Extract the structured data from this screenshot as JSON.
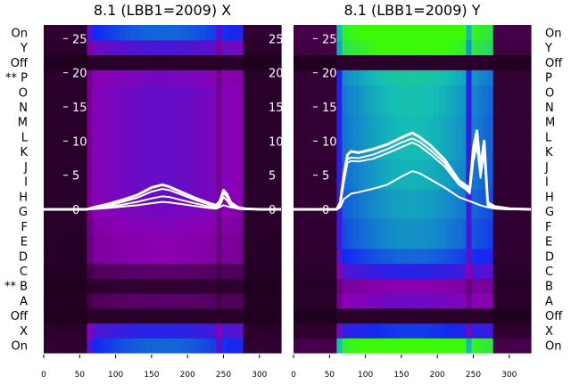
{
  "figure": {
    "background": "#ffffff",
    "panel_background": "#1e001e",
    "trace_color": "#ffffff"
  },
  "row_labels": [
    "On",
    "X",
    "Off",
    "A",
    "B",
    "C",
    "D",
    "E",
    "F",
    "G",
    "H",
    "I",
    "J",
    "K",
    "L",
    "M",
    "N",
    "O",
    "P",
    "Off",
    "Y",
    "On"
  ],
  "row_marks": [
    "",
    "",
    "",
    "",
    "**",
    "",
    "",
    "",
    "",
    "",
    "",
    "",
    "",
    "",
    "",
    "",
    "",
    "",
    "**",
    "",
    "",
    ""
  ],
  "chart_data": [
    {
      "type": "heatmap",
      "title": "8.1 (LBB1=2009) X",
      "xlabel": "",
      "ylabel": "",
      "xlim": [
        0,
        330
      ],
      "x_ticks": [
        0,
        50,
        100,
        150,
        200,
        250,
        300
      ],
      "y_ticks": [
        0,
        5,
        10,
        15,
        20,
        25
      ],
      "ylim": [
        -21,
        27
      ],
      "band_intensity": {
        "On": 0.55,
        "X": 0.45,
        "Off": 0.05,
        "A": 0.18,
        "B": 0.08,
        "C": 0.18,
        "D": 0.3,
        "E": 0.3,
        "F": 0.32,
        "G": 0.34,
        "H": 0.36,
        "I": 0.36,
        "J": 0.36,
        "K": 0.36,
        "L": 0.36,
        "M": 0.36,
        "N": 0.36,
        "O": 0.36,
        "P": 0.34,
        "Y": 0.4
      },
      "series": [
        {
          "values_x": [
            0,
            60,
            70,
            90,
            110,
            130,
            150,
            165,
            175,
            190,
            210,
            230,
            240,
            245,
            250,
            255,
            260,
            270,
            280,
            300,
            330
          ],
          "values": [
            0,
            0,
            0.3,
            0.8,
            1.4,
            2.1,
            3.2,
            3.6,
            3.3,
            2.6,
            1.7,
            0.9,
            0.6,
            1.2,
            2.8,
            2.2,
            1.0,
            0.3,
            0.1,
            0,
            0
          ]
        },
        {
          "values_x": [
            0,
            60,
            70,
            90,
            110,
            130,
            150,
            165,
            175,
            190,
            210,
            230,
            240,
            245,
            250,
            255,
            260,
            270,
            280,
            300,
            330
          ],
          "values": [
            0,
            0,
            0.2,
            0.6,
            1.1,
            1.7,
            2.6,
            3.0,
            2.8,
            2.2,
            1.4,
            0.7,
            0.4,
            0.9,
            2.4,
            1.8,
            0.8,
            0.2,
            0.1,
            0,
            0
          ]
        },
        {
          "values_x": [
            0,
            60,
            70,
            90,
            110,
            130,
            150,
            165,
            175,
            190,
            210,
            230,
            240,
            245,
            250,
            255,
            260,
            270,
            280,
            300,
            330
          ],
          "values": [
            0,
            0,
            0.1,
            0.4,
            0.7,
            1.1,
            1.6,
            1.9,
            1.8,
            1.4,
            0.9,
            0.4,
            0.2,
            0.6,
            1.8,
            1.3,
            0.5,
            0.1,
            0,
            0,
            0
          ]
        },
        {
          "values_x": [
            0,
            60,
            70,
            90,
            110,
            130,
            150,
            165,
            175,
            190,
            210,
            230,
            240,
            250,
            260,
            270,
            280,
            300,
            330
          ],
          "values": [
            0,
            0,
            0.05,
            0.2,
            0.4,
            0.6,
            0.9,
            1.1,
            1.0,
            0.8,
            0.5,
            0.2,
            0.1,
            0.6,
            0.3,
            0.1,
            0,
            0,
            0
          ]
        }
      ]
    },
    {
      "type": "heatmap",
      "title": "8.1 (LBB1=2009) Y",
      "xlabel": "",
      "ylabel": "",
      "xlim": [
        0,
        330
      ],
      "x_ticks": [
        0,
        50,
        100,
        150,
        200,
        250,
        300
      ],
      "y_ticks": [
        0,
        5,
        10,
        15,
        20,
        25
      ],
      "ylim": [
        -21,
        27
      ],
      "band_intensity": {
        "On": 0.95,
        "X": 0.5,
        "Off": 0.05,
        "A": 0.35,
        "B": 0.3,
        "C": 0.45,
        "D": 0.55,
        "E": 0.6,
        "F": 0.6,
        "G": 0.62,
        "H": 0.62,
        "I": 0.64,
        "J": 0.64,
        "K": 0.65,
        "L": 0.65,
        "M": 0.65,
        "N": 0.66,
        "O": 0.66,
        "P": 0.68,
        "Y": 0.9
      },
      "series": [
        {
          "values_x": [
            0,
            60,
            65,
            70,
            75,
            80,
            90,
            110,
            130,
            150,
            165,
            175,
            190,
            210,
            230,
            240,
            245,
            250,
            255,
            260,
            265,
            270,
            280,
            300,
            330
          ],
          "values": [
            0,
            0,
            1,
            5,
            8,
            8.5,
            8.3,
            8.8,
            9.5,
            10.5,
            11.2,
            10.6,
            9.4,
            7.3,
            4.2,
            3.5,
            3.0,
            9,
            11.5,
            6,
            10,
            1,
            0.4,
            0.1,
            0
          ]
        },
        {
          "values_x": [
            0,
            60,
            65,
            70,
            75,
            80,
            90,
            110,
            130,
            150,
            165,
            175,
            190,
            210,
            230,
            240,
            245,
            250,
            255,
            260,
            265,
            270,
            280,
            300,
            330
          ],
          "values": [
            0,
            0,
            0.8,
            4.5,
            7.3,
            7.6,
            7.5,
            8.0,
            8.8,
            9.8,
            10.4,
            9.9,
            8.7,
            6.8,
            3.9,
            3.2,
            2.6,
            8,
            10.2,
            5,
            9,
            0.8,
            0.3,
            0.1,
            0
          ]
        },
        {
          "values_x": [
            0,
            60,
            65,
            70,
            75,
            80,
            90,
            110,
            130,
            150,
            165,
            175,
            190,
            210,
            230,
            240,
            245,
            250,
            255,
            260,
            265,
            270,
            280,
            300,
            330
          ],
          "values": [
            0,
            0,
            0.6,
            4.0,
            6.8,
            7.1,
            7.0,
            7.4,
            8.2,
            9.1,
            9.8,
            9.3,
            8.1,
            6.3,
            3.6,
            2.9,
            2.3,
            7,
            9.4,
            4.6,
            8.4,
            0.6,
            0.2,
            0,
            0
          ]
        },
        {
          "values_x": [
            0,
            60,
            65,
            70,
            80,
            90,
            110,
            130,
            150,
            165,
            175,
            190,
            210,
            230,
            240,
            250,
            260,
            270,
            280,
            300,
            330
          ],
          "values": [
            0,
            0,
            0.3,
            1.5,
            2.3,
            2.5,
            3.0,
            3.6,
            4.8,
            5.6,
            5.3,
            4.4,
            3.2,
            1.8,
            1.4,
            1.0,
            0.6,
            0.3,
            0.1,
            0,
            0
          ]
        }
      ]
    }
  ]
}
